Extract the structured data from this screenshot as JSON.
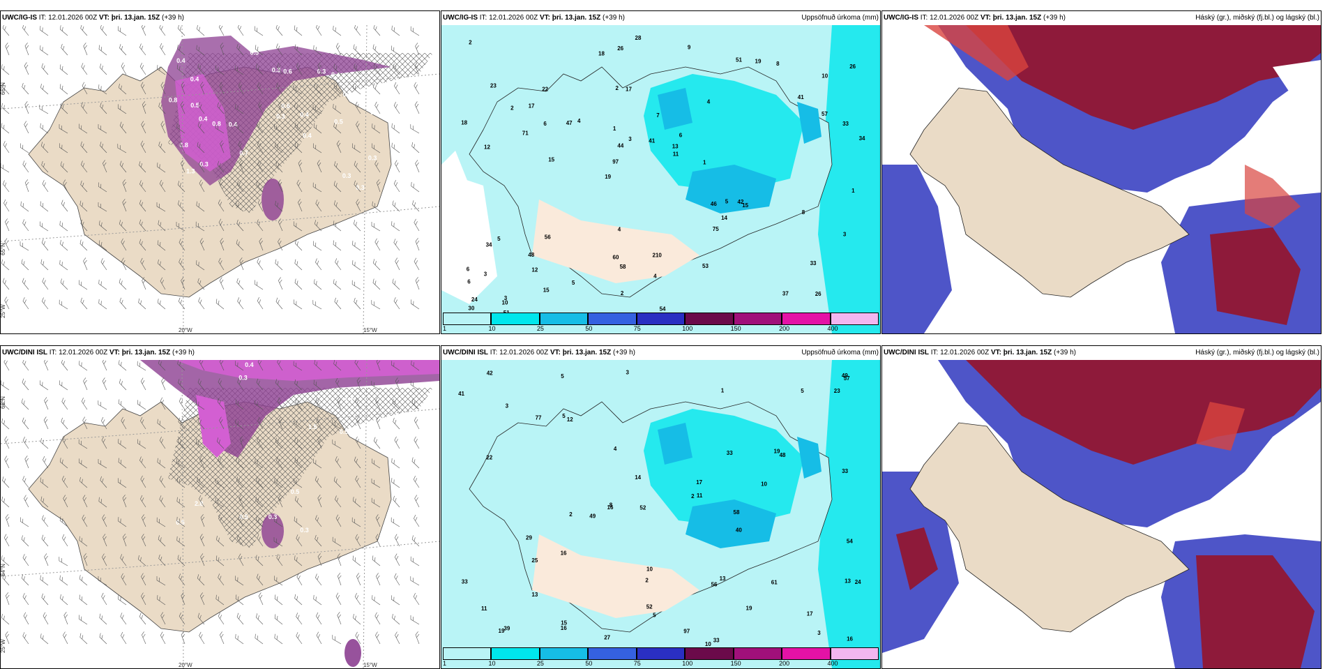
{
  "panels": [
    {
      "model": "UWC/IG-IS",
      "it": "IT: 12.01.2026 00Z",
      "vt_label": "VT:",
      "vt": "þri. 13.jan. 15Z",
      "lead": "(+39 h)",
      "right": ""
    },
    {
      "model": "UWC/IG-IS",
      "it": "IT: 12.01.2026 00Z",
      "vt_label": "VT:",
      "vt": "þri. 13.jan. 15Z",
      "lead": "(+39 h)",
      "right": "Uppsöfnuð úrkoma (mm)"
    },
    {
      "model": "UWC/IG-IS",
      "it": "IT: 12.01.2026 00Z",
      "vt_label": "VT:",
      "vt": "þri. 13.jan. 15Z",
      "lead": "(+39 h)",
      "right": "Háský (gr.), miðský (fj.bl.) og lágský (bl.)"
    },
    {
      "model": "UWC/DINI ISL",
      "it": "IT: 12.01.2026 00Z",
      "vt_label": "VT:",
      "vt": "þri. 13.jan. 15Z",
      "lead": "(+39 h)",
      "right": ""
    },
    {
      "model": "UWC/DINI ISL",
      "it": "IT: 12.01.2026 00Z",
      "vt_label": "VT:",
      "vt": "þri. 13.jan. 15Z",
      "lead": "(+39 h)",
      "right": "Uppsöfnuð úrkoma (mm)"
    },
    {
      "model": "UWC/DINI ISL",
      "it": "IT: 12.01.2026 00Z",
      "vt_label": "VT:",
      "vt": "þri. 13.jan. 15Z",
      "lead": "(+39 h)",
      "right": "Háský (gr.), miðský (fj.bl.) og lágský (bl.)"
    }
  ],
  "colorbar": {
    "ticks": [
      "1",
      "10",
      "25",
      "50",
      "75",
      "100",
      "150",
      "200",
      "400"
    ],
    "colors": [
      "#b9f4f6",
      "#00e6ec",
      "#16bde6",
      "#3561e0",
      "#2a2fc2",
      "#6b0a4a",
      "#a0107a",
      "#e412a6",
      "#f2b6f0"
    ]
  },
  "coords": {
    "lat_65": "65°N",
    "lat_64": "64°N",
    "lat_66": "66°N",
    "lon_25": "25°W",
    "lon_20": "20°W",
    "lon_15": "15°W"
  },
  "precip_top": [
    "26",
    "12",
    "10",
    "19",
    "4",
    "3",
    "2",
    "7",
    "5",
    "4",
    "6",
    "12",
    "17",
    "6",
    "15",
    "23",
    "26",
    "34",
    "46",
    "57",
    "97",
    "60",
    "44",
    "22",
    "51",
    "56",
    "37",
    "33",
    "42",
    "54",
    "47",
    "71",
    "75",
    "15",
    "33",
    "13",
    "24",
    "58",
    "11",
    "34",
    "41",
    "26",
    "14",
    "53",
    "48",
    "51",
    "30",
    "210",
    "8",
    "28",
    "15",
    "18",
    "17",
    "19",
    "10",
    "9",
    "18",
    "3",
    "3",
    "4",
    "5",
    "5",
    "6",
    "6",
    "2",
    "2",
    "1",
    "1",
    "4",
    "41",
    "3",
    "1",
    "8",
    "2"
  ],
  "precip_bottom": [
    "27",
    "10",
    "15",
    "19",
    "5",
    "3",
    "2",
    "3",
    "3",
    "4",
    "5",
    "5",
    "8",
    "2",
    "1",
    "2",
    "22",
    "16",
    "49",
    "41",
    "56",
    "57",
    "17",
    "19",
    "48",
    "29",
    "33",
    "25",
    "42",
    "40",
    "52",
    "33",
    "10",
    "23",
    "13",
    "58",
    "13",
    "11",
    "33",
    "17",
    "11",
    "10",
    "24",
    "39",
    "12",
    "13",
    "54",
    "97",
    "77",
    "52",
    "49",
    "33",
    "16",
    "61",
    "16",
    "19",
    "16",
    "14",
    "5"
  ],
  "wind_top": [
    "0.3",
    "0.4",
    "0.4",
    "0.4",
    "0.3",
    "0.4",
    "0.3",
    "0.4",
    "0.4",
    "0.3",
    "0.3",
    "0.3",
    "0.7",
    "0.5",
    "0.4",
    "0.8",
    "0.5",
    "0.6",
    "0.8",
    "1.3",
    "1.5",
    "0.6",
    "0.4",
    "0.3",
    "0.5",
    "0.5",
    "0.8",
    "0.3"
  ],
  "wind_bottom": [
    "0.4",
    "1.7",
    "1.8",
    "0.3",
    "0.3",
    "2.8",
    "1.6",
    "0.5",
    "0.5",
    "1.5",
    "0.5",
    "0.5",
    "0.3",
    "0.5",
    "1.6",
    "0.9"
  ]
}
